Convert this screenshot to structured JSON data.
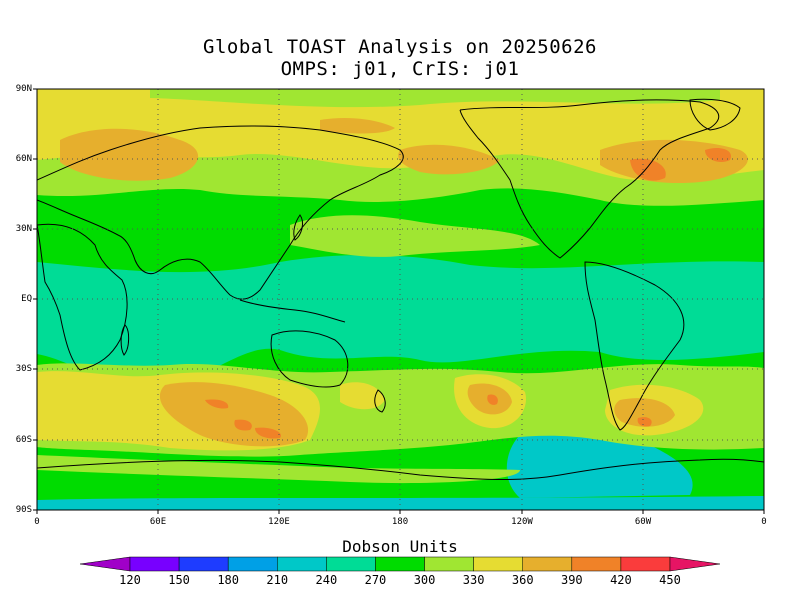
{
  "title": {
    "line1": "Global TOAST Analysis on 20250626",
    "line2": "OMPS: j01, CrIS: j01"
  },
  "axes": {
    "lat_ticks": [
      "90N",
      "60N",
      "30N",
      "EQ",
      "30S",
      "60S",
      "90S"
    ],
    "lon_ticks": [
      "0",
      "60E",
      "120E",
      "180",
      "120W",
      "60W",
      "0"
    ]
  },
  "colorbar": {
    "title": "Dobson Units",
    "labels": [
      "120",
      "150",
      "180",
      "210",
      "240",
      "270",
      "300",
      "330",
      "360",
      "390",
      "420",
      "450"
    ],
    "colors": [
      "#a000c8",
      "#7800ff",
      "#1e3cff",
      "#00a0e6",
      "#00c8c8",
      "#00dc96",
      "#00dc00",
      "#a0e632",
      "#e6dc32",
      "#e6af2d",
      "#f08228",
      "#fa3c3c",
      "#e61464"
    ]
  },
  "map": {
    "projection": "cylindrical equidistant",
    "lon_range": [
      0,
      360
    ],
    "lat_range": [
      -90,
      90
    ],
    "colors": {
      "c270": "#00dc96",
      "c300": "#00dc00",
      "c330": "#a0e632",
      "c360": "#e6dc32",
      "c390": "#e6af2d",
      "c420": "#f08228",
      "c240": "#00c8c8"
    }
  }
}
